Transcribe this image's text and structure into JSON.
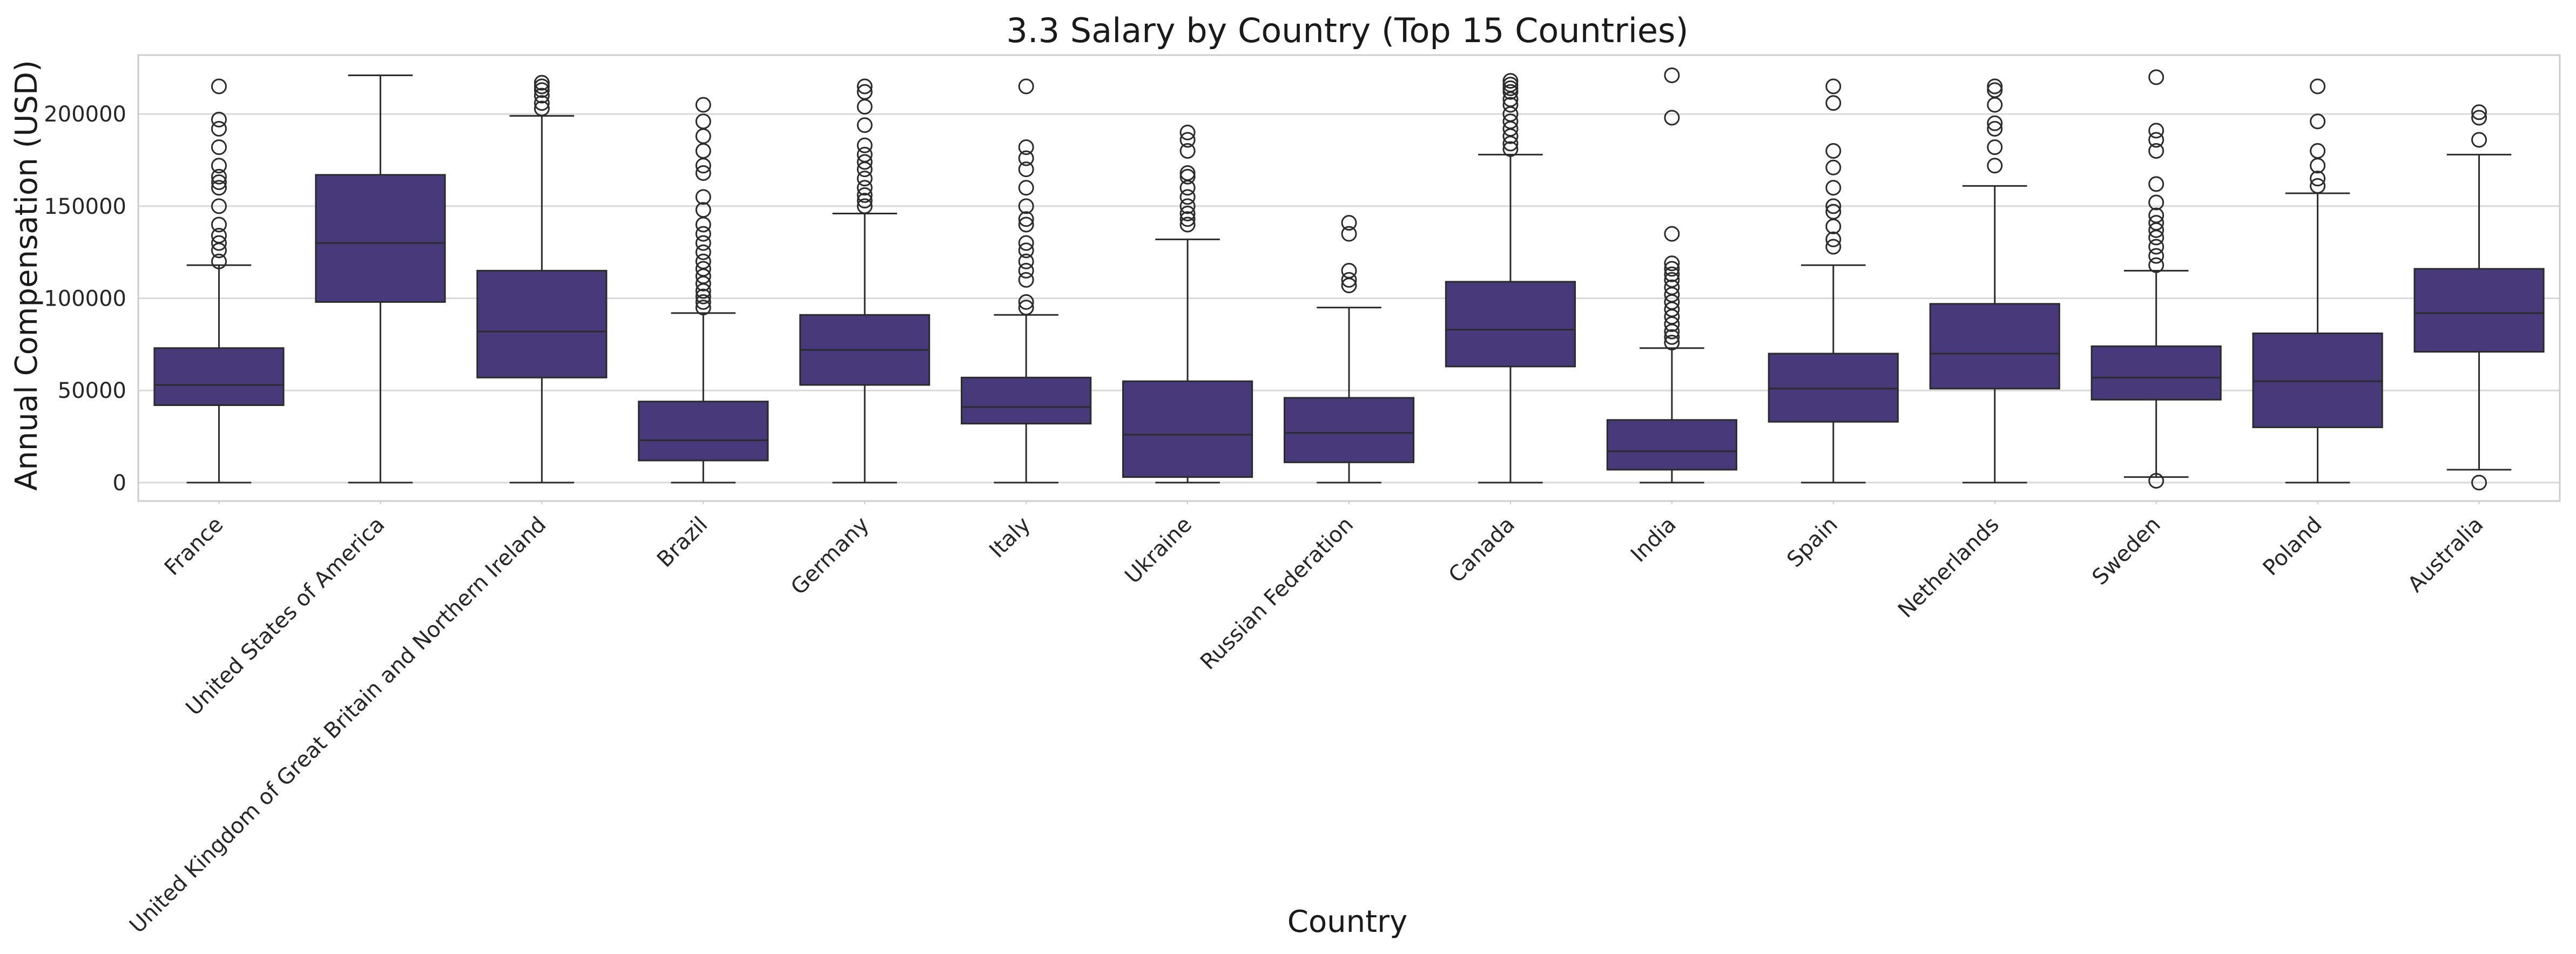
{
  "chart_data": {
    "type": "box",
    "title": "3.3 Salary by Country (Top 15 Countries)",
    "xlabel": "Country",
    "ylabel": "Annual Compensation (USD)",
    "ylim": [
      -10000,
      232000
    ],
    "yticks": [
      0,
      50000,
      100000,
      150000,
      200000
    ],
    "ytick_labels": [
      "0",
      "50000",
      "100000",
      "150000",
      "200000"
    ],
    "grid": "horizontal",
    "colors": {
      "box": "#483a7a",
      "line": "#2b2b2b",
      "grid": "#d9d9d9",
      "frame": "#cccccc"
    },
    "categories": [
      "France",
      "United States of America",
      "United Kingdom of Great Britain and Northern Ireland",
      "Brazil",
      "Germany",
      "Italy",
      "Ukraine",
      "Russian Federation",
      "Canada",
      "India",
      "Spain",
      "Netherlands",
      "Sweden",
      "Poland",
      "Australia"
    ],
    "boxes": [
      {
        "whislo": 0,
        "q1": 42000,
        "med": 53000,
        "q3": 73000,
        "whishi": 118000,
        "fliers": [
          120000,
          126000,
          130000,
          134000,
          140000,
          150000,
          160000,
          163000,
          166000,
          172000,
          182000,
          192000,
          197000,
          215000
        ]
      },
      {
        "whislo": 0,
        "q1": 98000,
        "med": 130000,
        "q3": 167000,
        "whishi": 221000,
        "fliers": []
      },
      {
        "whislo": 0,
        "q1": 57000,
        "med": 82000,
        "q3": 115000,
        "whishi": 199000,
        "fliers": [
          203000,
          206000,
          210000,
          213000,
          215000,
          217000
        ]
      },
      {
        "whislo": 0,
        "q1": 12000,
        "med": 23000,
        "q3": 44000,
        "whishi": 92000,
        "fliers": [
          95000,
          98000,
          101000,
          104000,
          108000,
          112000,
          116000,
          120000,
          125000,
          130000,
          135000,
          140000,
          148000,
          155000,
          168000,
          172000,
          180000,
          188000,
          196000,
          205000
        ]
      },
      {
        "whislo": 0,
        "q1": 53000,
        "med": 72000,
        "q3": 91000,
        "whishi": 146000,
        "fliers": [
          150000,
          153000,
          156000,
          160000,
          165000,
          170000,
          174000,
          178000,
          183000,
          194000,
          204000,
          212000,
          215000
        ]
      },
      {
        "whislo": 0,
        "q1": 32000,
        "med": 41000,
        "q3": 57000,
        "whishi": 91000,
        "fliers": [
          95000,
          98000,
          110000,
          115000,
          120000,
          126000,
          130000,
          140000,
          143000,
          150000,
          160000,
          170000,
          176000,
          182000,
          215000
        ]
      },
      {
        "whislo": 0,
        "q1": 3000,
        "med": 26000,
        "q3": 55000,
        "whishi": 132000,
        "fliers": [
          140000,
          143000,
          146000,
          150000,
          155000,
          160000,
          166000,
          168000,
          180000,
          186000,
          190000
        ]
      },
      {
        "whislo": 0,
        "q1": 11000,
        "med": 27000,
        "q3": 46000,
        "whishi": 95000,
        "fliers": [
          107000,
          110000,
          115000,
          135000,
          141000
        ]
      },
      {
        "whislo": 0,
        "q1": 63000,
        "med": 83000,
        "q3": 109000,
        "whishi": 178000,
        "fliers": [
          181000,
          184000,
          188000,
          192000,
          196000,
          200000,
          205000,
          208000,
          212000,
          214000,
          216000,
          218000
        ]
      },
      {
        "whislo": 0,
        "q1": 7000,
        "med": 17000,
        "q3": 34000,
        "whishi": 73000,
        "fliers": [
          76000,
          79000,
          82000,
          86000,
          90000,
          94000,
          98000,
          102000,
          106000,
          110000,
          113000,
          116000,
          119000,
          135000,
          198000,
          221000
        ]
      },
      {
        "whislo": 0,
        "q1": 33000,
        "med": 51000,
        "q3": 70000,
        "whishi": 118000,
        "fliers": [
          128000,
          132000,
          139000,
          147000,
          150000,
          160000,
          171000,
          180000,
          206000,
          215000
        ]
      },
      {
        "whislo": 0,
        "q1": 51000,
        "med": 70000,
        "q3": 97000,
        "whishi": 161000,
        "fliers": [
          172000,
          182000,
          192000,
          195000,
          205000,
          213000,
          215000
        ]
      },
      {
        "whislo": 3000,
        "q1": 45000,
        "med": 57000,
        "q3": 74000,
        "whishi": 115000,
        "fliers": [
          1000,
          118000,
          123000,
          128000,
          133000,
          137000,
          141000,
          145000,
          152000,
          162000,
          180000,
          186000,
          191000,
          220000
        ]
      },
      {
        "whislo": 0,
        "q1": 30000,
        "med": 55000,
        "q3": 81000,
        "whishi": 157000,
        "fliers": [
          161000,
          165000,
          172000,
          180000,
          196000,
          215000
        ]
      },
      {
        "whislo": 7000,
        "q1": 71000,
        "med": 92000,
        "q3": 116000,
        "whishi": 178000,
        "fliers": [
          0,
          186000,
          198000,
          201000
        ]
      }
    ]
  }
}
